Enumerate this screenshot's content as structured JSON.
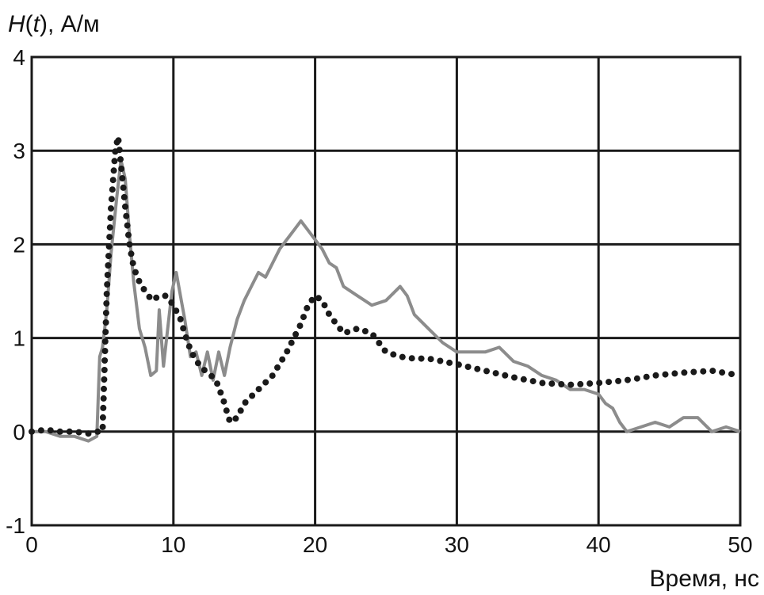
{
  "chart_data": {
    "type": "line",
    "title": "",
    "ylabel": {
      "italic_symbol": "H",
      "arg_open": "(",
      "arg_italic": "t",
      "arg_close": ")",
      "unit": ", А/м"
    },
    "xlabel": "Время, нс",
    "xlim": [
      0,
      50
    ],
    "ylim": [
      -1,
      4
    ],
    "xticks": [
      "0",
      "10",
      "20",
      "30",
      "40",
      "50"
    ],
    "yticks": [
      "-1",
      "0",
      "1",
      "2",
      "3",
      "4"
    ],
    "grid": true,
    "legend": "none",
    "series": [
      {
        "style": "solid",
        "color": "#8c8c8c",
        "x": [
          0,
          1,
          2,
          3,
          4,
          4.6,
          4.8,
          5.0,
          5.3,
          5.6,
          6.0,
          6.3,
          6.6,
          6.9,
          7.2,
          7.6,
          8.0,
          8.4,
          8.8,
          9.0,
          9.3,
          9.6,
          9.9,
          10.2,
          10.5,
          10.8,
          11.2,
          11.6,
          12.0,
          12.4,
          12.8,
          13.2,
          13.6,
          14.0,
          14.5,
          15.0,
          15.5,
          16.0,
          16.5,
          17.0,
          17.5,
          18.0,
          18.5,
          19.0,
          19.5,
          20.0,
          20.5,
          21.0,
          21.5,
          22.0,
          23.0,
          24.0,
          25.0,
          26.0,
          26.5,
          27.0,
          28.0,
          29.0,
          30.0,
          31.0,
          32.0,
          33.0,
          34.0,
          35.0,
          36.0,
          37.0,
          38.0,
          39.0,
          40.0,
          40.5,
          41.0,
          41.5,
          42.0,
          43.0,
          44.0,
          45.0,
          46.0,
          47.0,
          48.0,
          49.0,
          50.0
        ],
        "y": [
          0.0,
          0.0,
          -0.05,
          -0.05,
          -0.1,
          -0.05,
          0.8,
          0.9,
          1.3,
          1.9,
          2.5,
          2.9,
          2.7,
          2.1,
          1.6,
          1.1,
          0.9,
          0.6,
          0.65,
          1.3,
          0.7,
          1.1,
          1.5,
          1.7,
          1.45,
          1.2,
          0.8,
          0.85,
          0.6,
          0.85,
          0.55,
          0.85,
          0.6,
          0.9,
          1.2,
          1.4,
          1.55,
          1.7,
          1.65,
          1.8,
          1.95,
          2.05,
          2.15,
          2.25,
          2.15,
          2.05,
          1.95,
          1.8,
          1.75,
          1.55,
          1.45,
          1.35,
          1.4,
          1.55,
          1.45,
          1.25,
          1.1,
          0.95,
          0.85,
          0.85,
          0.85,
          0.9,
          0.75,
          0.7,
          0.6,
          0.55,
          0.45,
          0.45,
          0.4,
          0.3,
          0.25,
          0.1,
          0.0,
          0.05,
          0.1,
          0.05,
          0.15,
          0.15,
          0.0,
          0.05,
          0.0
        ]
      },
      {
        "style": "dotted",
        "color": "#1a1a1a",
        "x": [
          0,
          1,
          2,
          3,
          4,
          4.6,
          5.0,
          5.3,
          5.6,
          5.9,
          6.1,
          6.3,
          6.6,
          6.9,
          7.2,
          7.6,
          8.0,
          8.5,
          9.0,
          9.5,
          10.0,
          10.5,
          11.0,
          11.5,
          12.0,
          12.5,
          13.0,
          13.5,
          14.0,
          14.5,
          15.0,
          16.0,
          17.0,
          18.0,
          19.0,
          19.5,
          20.0,
          20.5,
          21.0,
          22.0,
          23.0,
          24.0,
          25.0,
          26.0,
          27.0,
          28.0,
          29.0,
          30.0,
          32.0,
          34.0,
          36.0,
          38.0,
          40.0,
          42.0,
          44.0,
          46.0,
          48.0,
          50.0
        ],
        "y": [
          0.0,
          0.02,
          0.0,
          0.0,
          -0.02,
          0.0,
          0.0,
          1.5,
          2.4,
          3.0,
          3.15,
          2.85,
          2.4,
          2.0,
          1.75,
          1.6,
          1.5,
          1.4,
          1.45,
          1.45,
          1.35,
          1.2,
          0.95,
          0.78,
          0.68,
          0.62,
          0.55,
          0.35,
          0.1,
          0.15,
          0.3,
          0.45,
          0.6,
          0.85,
          1.15,
          1.35,
          1.45,
          1.4,
          1.25,
          1.05,
          1.1,
          1.05,
          0.85,
          0.8,
          0.78,
          0.78,
          0.75,
          0.72,
          0.65,
          0.58,
          0.52,
          0.5,
          0.52,
          0.55,
          0.6,
          0.63,
          0.65,
          0.6
        ]
      }
    ]
  }
}
